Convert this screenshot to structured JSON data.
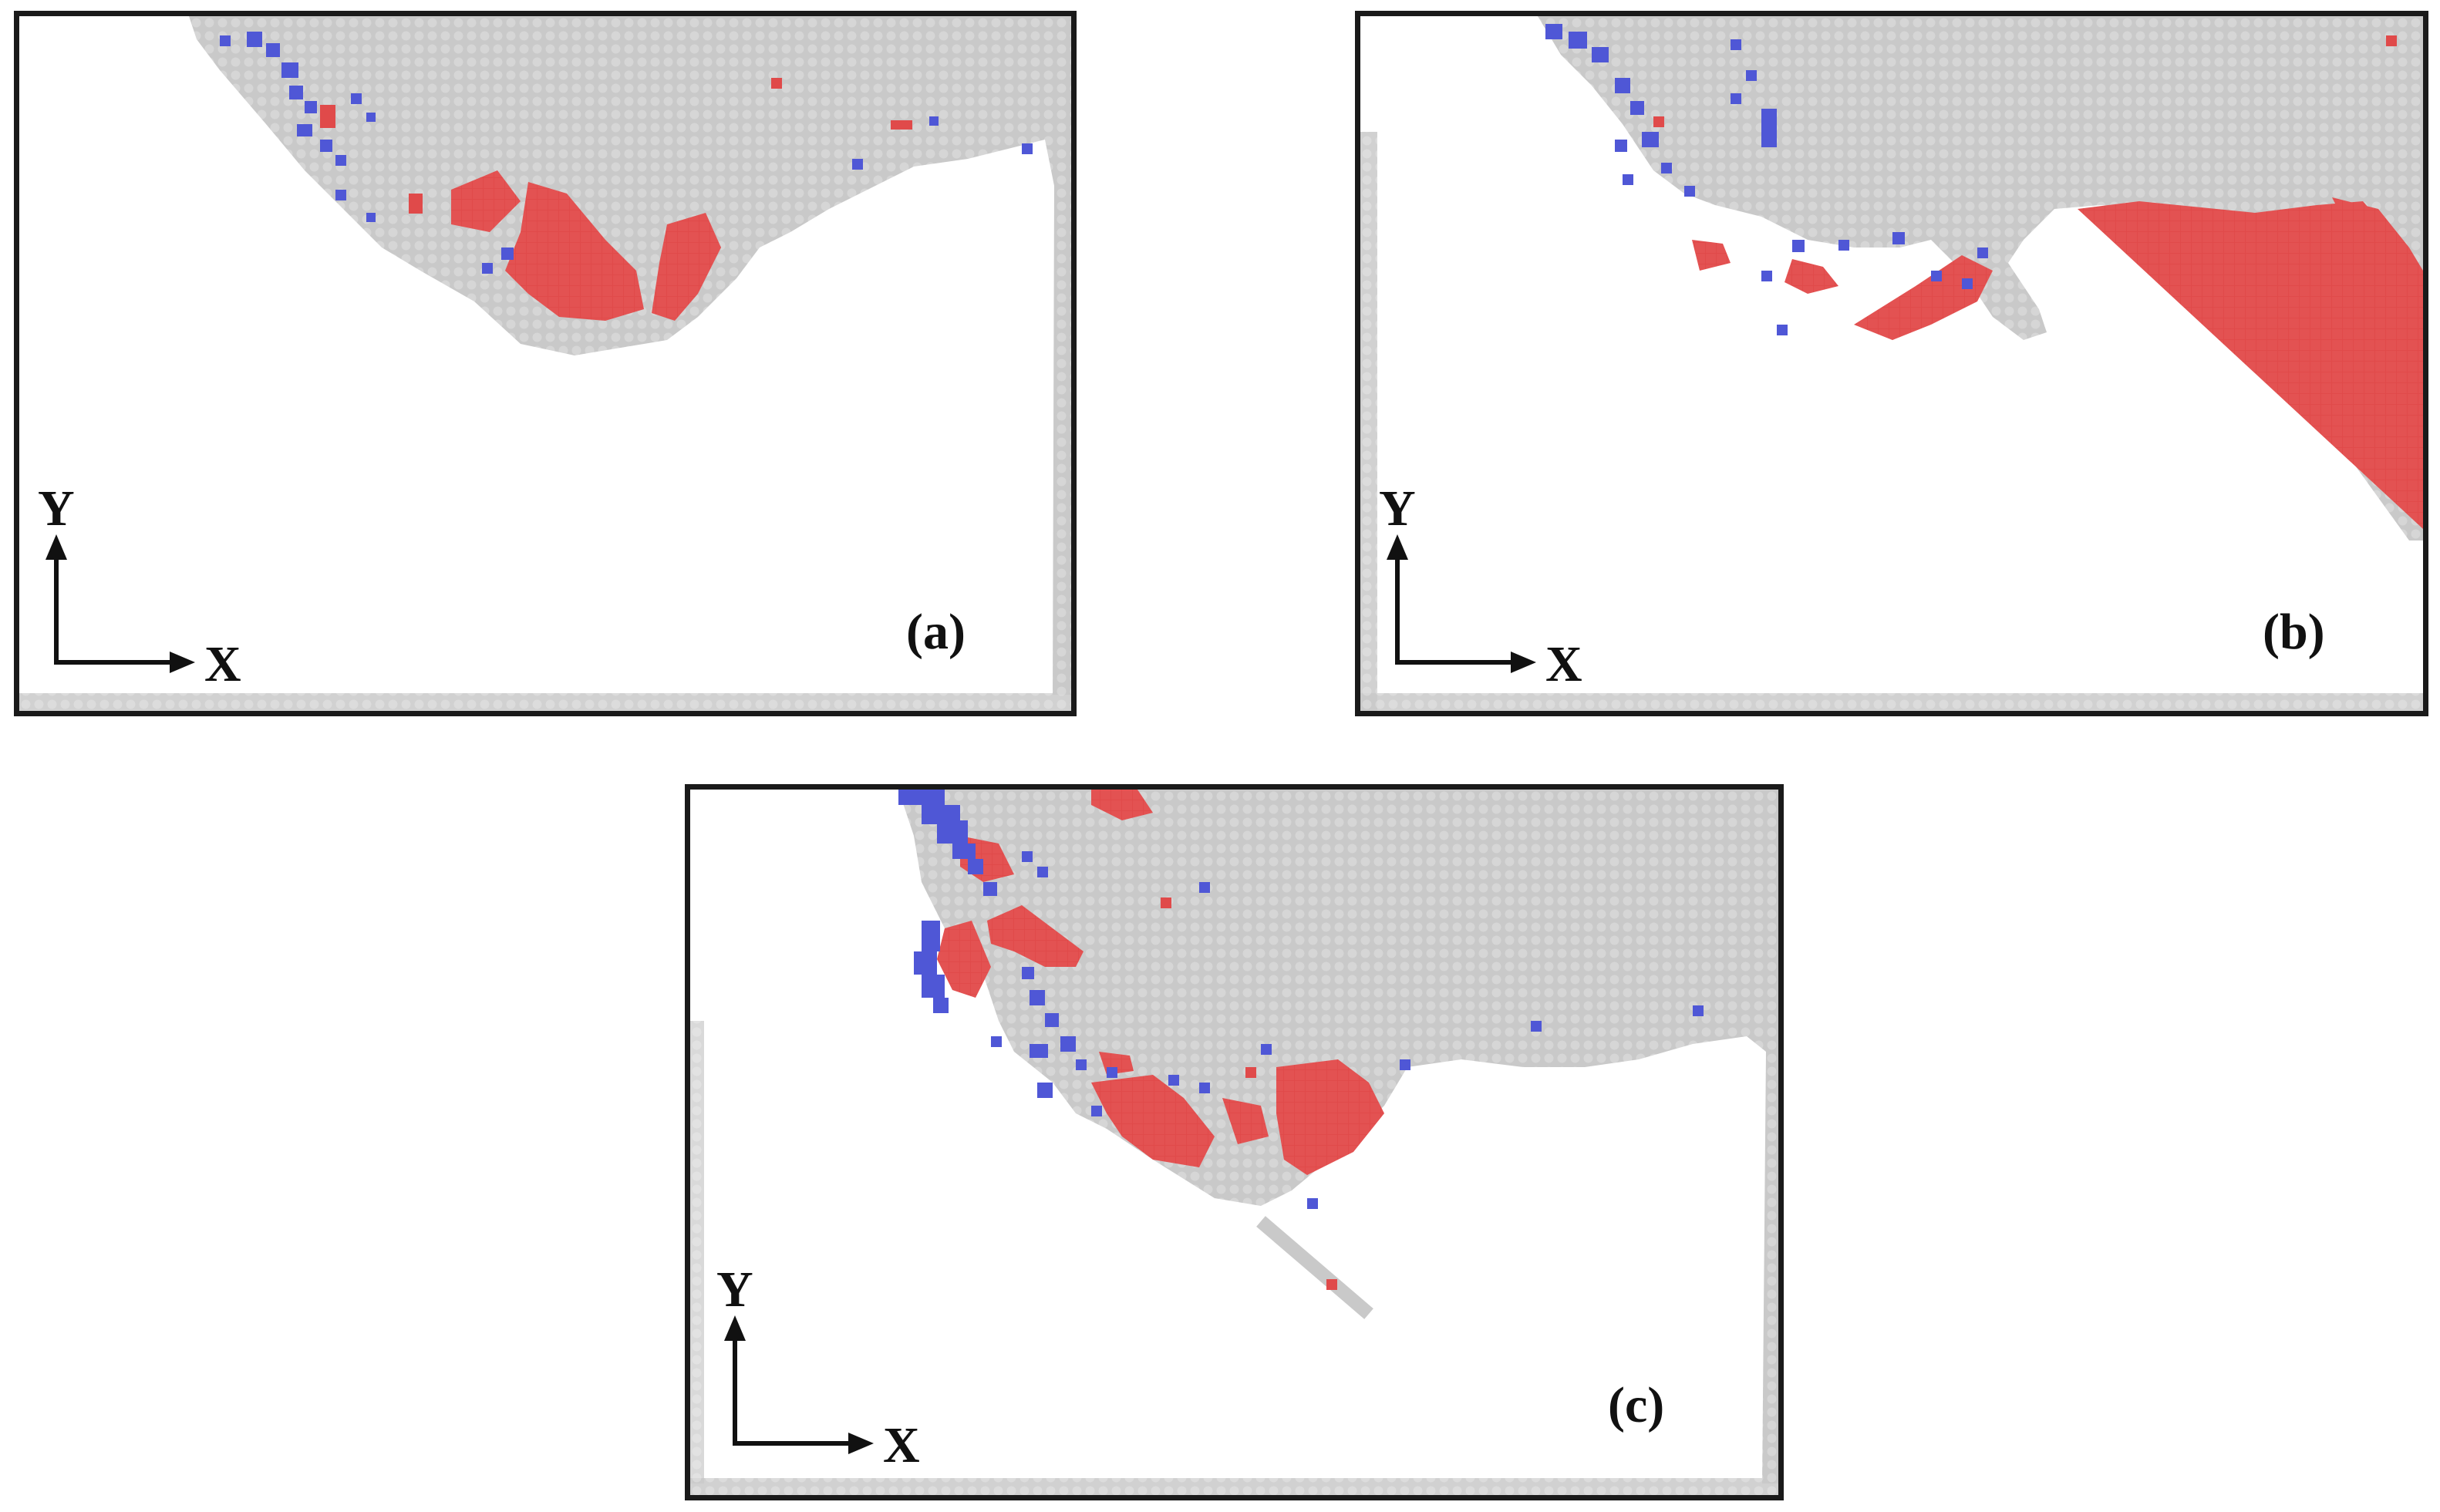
{
  "colors": {
    "frame": "#1a1a1a",
    "matrix_atoms": "#c9c9c9",
    "red_atoms": "#e04a4a",
    "blue_atoms": "#4f57d6",
    "background": "#ffffff",
    "axes": "#111111"
  },
  "axes": {
    "y_label": "Y",
    "x_label": "X"
  },
  "panels": [
    {
      "id": "a",
      "label": "(a)"
    },
    {
      "id": "b",
      "label": "(b)"
    },
    {
      "id": "c",
      "label": "(c)"
    }
  ]
}
